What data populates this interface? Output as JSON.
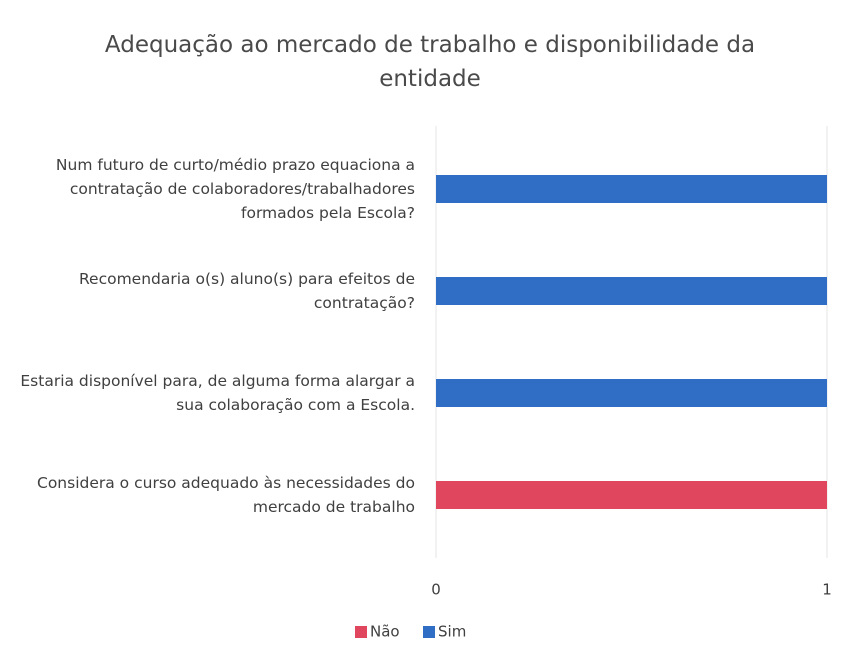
{
  "chart_data": {
    "type": "stacked_bar_horizontal",
    "title": "Adequação ao mercado de trabalho e disponibilidade da entidade",
    "categories": [
      "Num futuro de curto/médio prazo equaciona a contratação de colaboradores/trabalhadores formados pela Escola?",
      "Recomendaria o(s) aluno(s) para efeitos de contratação?",
      "Estaria disponível para, de alguma forma alargar a sua colaboração com a Escola.",
      "Considera o curso adequado às necessidades do mercado de trabalho"
    ],
    "series": [
      {
        "name": "Não",
        "color": "#e0465d",
        "values": [
          0,
          0,
          0,
          1
        ]
      },
      {
        "name": "Sim",
        "color": "#2f6ec4",
        "values": [
          1,
          1,
          1,
          0
        ]
      }
    ],
    "xlim": [
      0,
      1
    ],
    "xticks": [
      0,
      1
    ],
    "grid": true,
    "legend": "bottom"
  }
}
